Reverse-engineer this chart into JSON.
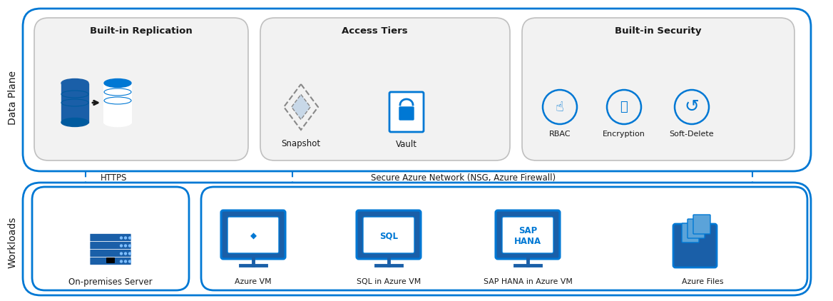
{
  "bg_color": "#ffffff",
  "blue_dark": "#0078d4",
  "blue_light": "#deebf7",
  "gray_box": "#f2f2f2",
  "gray_border": "#bfbfbf",
  "text_dark": "#1a1a1a",
  "title_data_plane": "Data Plane",
  "title_workloads": "Workloads",
  "label_replication": "Built-in Replication",
  "label_access_tiers": "Access Tiers",
  "label_snapshot": "Snapshot",
  "label_vault": "Vault",
  "label_security": "Built-in Security",
  "label_rbac": "RBAC",
  "label_encryption": "Encryption",
  "label_soft_delete": "Soft-Delete",
  "label_https": "HTTPS",
  "label_network": "Secure Azure Network (NSG, Azure Firewall)",
  "workloads": [
    "On-premises Server",
    "Azure VM",
    "SQL in Azure VM",
    "SAP HANA in Azure VM",
    "Azure Files"
  ],
  "outer_box_color": "#0078d4",
  "inner_box_fill": "#f8f8f8",
  "label_color": "#0078d4"
}
